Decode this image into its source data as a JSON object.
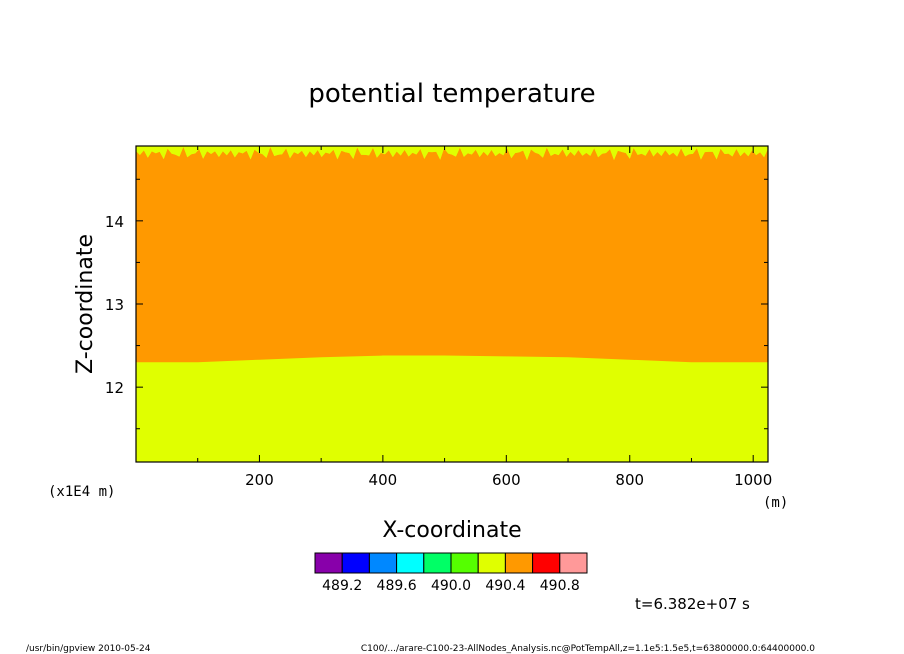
{
  "chart_data": {
    "type": "heatmap",
    "title": "potential temperature",
    "xlabel": "X-coordinate",
    "ylabel": "Z-coordinate",
    "x_unit": "(m)",
    "y_unit": "(x1E4 m)",
    "xlim": [
      0,
      1024
    ],
    "ylim": [
      11.1,
      14.9
    ],
    "x_ticks": [
      "200",
      "400",
      "600",
      "800",
      "1000"
    ],
    "y_ticks": [
      "12",
      "13",
      "14"
    ],
    "x_tick_values": [
      200,
      400,
      600,
      800,
      1000
    ],
    "y_tick_values": [
      12,
      13,
      14
    ],
    "grid": false,
    "regions": [
      {
        "level": "490.4-490.6",
        "color": "#e0ff00",
        "z_range": [
          11.1,
          12.33
        ]
      },
      {
        "level": "490.6-490.8",
        "color": "#ff9900",
        "z_range": [
          12.33,
          14.8
        ]
      },
      {
        "level": "490.4-490.6",
        "color": "#e0ff00",
        "z_range": [
          14.8,
          14.9
        ]
      }
    ],
    "lower_boundary_profile": {
      "x": [
        0,
        100,
        200,
        300,
        400,
        500,
        600,
        700,
        800,
        900,
        1024
      ],
      "z": [
        12.3,
        12.3,
        12.33,
        12.36,
        12.38,
        12.38,
        12.37,
        12.36,
        12.33,
        12.3,
        12.3
      ]
    },
    "colorbar": {
      "colors": [
        "#8800aa",
        "#0000ff",
        "#0088ff",
        "#00ffff",
        "#00ff66",
        "#55ff00",
        "#e0ff00",
        "#ff9900",
        "#ff0000",
        "#ff9999"
      ],
      "labels": [
        "489.2",
        "489.6",
        "490.0",
        "490.4",
        "490.8"
      ]
    },
    "time": "t=6.382e+07 s"
  },
  "footer": {
    "left": "/usr/bin/gpview   2010-05-24",
    "right": "C100/.../arare-C100-23-AllNodes_Analysis.nc@PotTempAll,z=1.1e5:1.5e5,t=63800000.0:64400000.0"
  }
}
